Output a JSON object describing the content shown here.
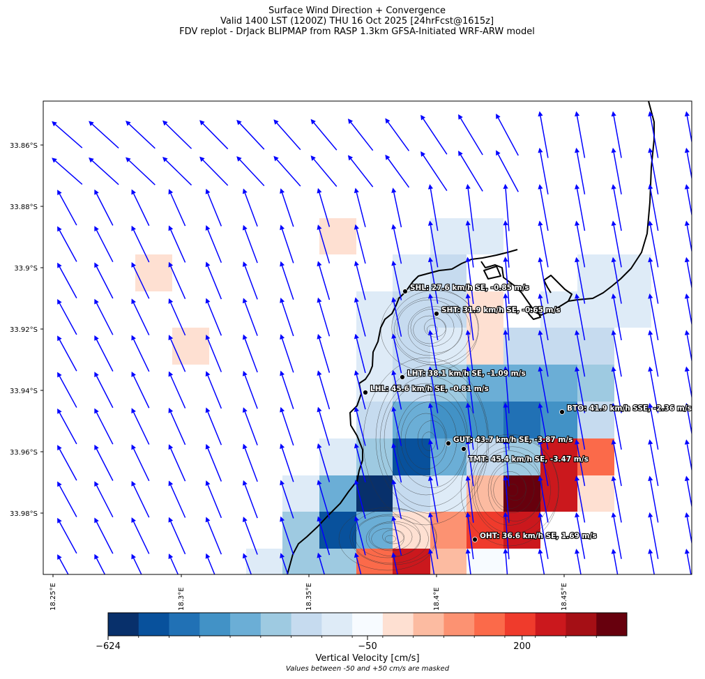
{
  "title": {
    "line1": "Surface Wind Direction + Convergence",
    "line2": "Valid 1400 LST (1200Z) THU 16 Oct 2025 [24hrFcst@1615z]",
    "line3": "FDV replot - DrJack BLIPMAP from RASP 1.3km GFSA-Initiated WRF-ARW model"
  },
  "map": {
    "lat_ticks": [
      "33.86°S",
      "33.88°S",
      "33.9°S",
      "33.92°S",
      "33.94°S",
      "33.96°S",
      "33.98°S"
    ],
    "lon_ticks": [
      "18.25°E",
      "18.3°E",
      "18.35°E",
      "18.4°E",
      "18.45°E"
    ],
    "wind_arrow_color": "#0000ff",
    "coastline_color": "#000000"
  },
  "stations": [
    {
      "label": "SHL: 27.6 km/h SE, -0.85 m/s"
    },
    {
      "label": "SHT: 31.9 km/h SE, -0.65 m/s"
    },
    {
      "label": "LHT: 38.1 km/h SE, -1.09 m/s"
    },
    {
      "label": "LHL: 45.6 km/h SE, -0.81 m/s"
    },
    {
      "label": "BTO: 41.9 km/h SSE, -2.36 m/s"
    },
    {
      "label": "GUT: 43.7 km/h SE, -3.87 m/s"
    },
    {
      "label": "TMT: 45.4 km/h SE, -3.47 m/s"
    },
    {
      "label": "OHT: 36.6 km/h SE, 1.69 m/s"
    }
  ],
  "colorbar": {
    "label": "Vertical Velocity [cm/s]",
    "tick_labels": [
      "−624",
      "−50",
      "200"
    ],
    "note": "Values between -50 and +50 cm/s are masked",
    "colors": [
      "#08306b",
      "#08519c",
      "#2171b5",
      "#4292c6",
      "#6baed6",
      "#9ecae1",
      "#c6dbef",
      "#deebf7",
      "#f7fbff",
      "#fee0d2",
      "#fcbba1",
      "#fc9272",
      "#fb6a4a",
      "#ef3b2c",
      "#cb181d",
      "#a50f15",
      "#67000d"
    ]
  }
}
